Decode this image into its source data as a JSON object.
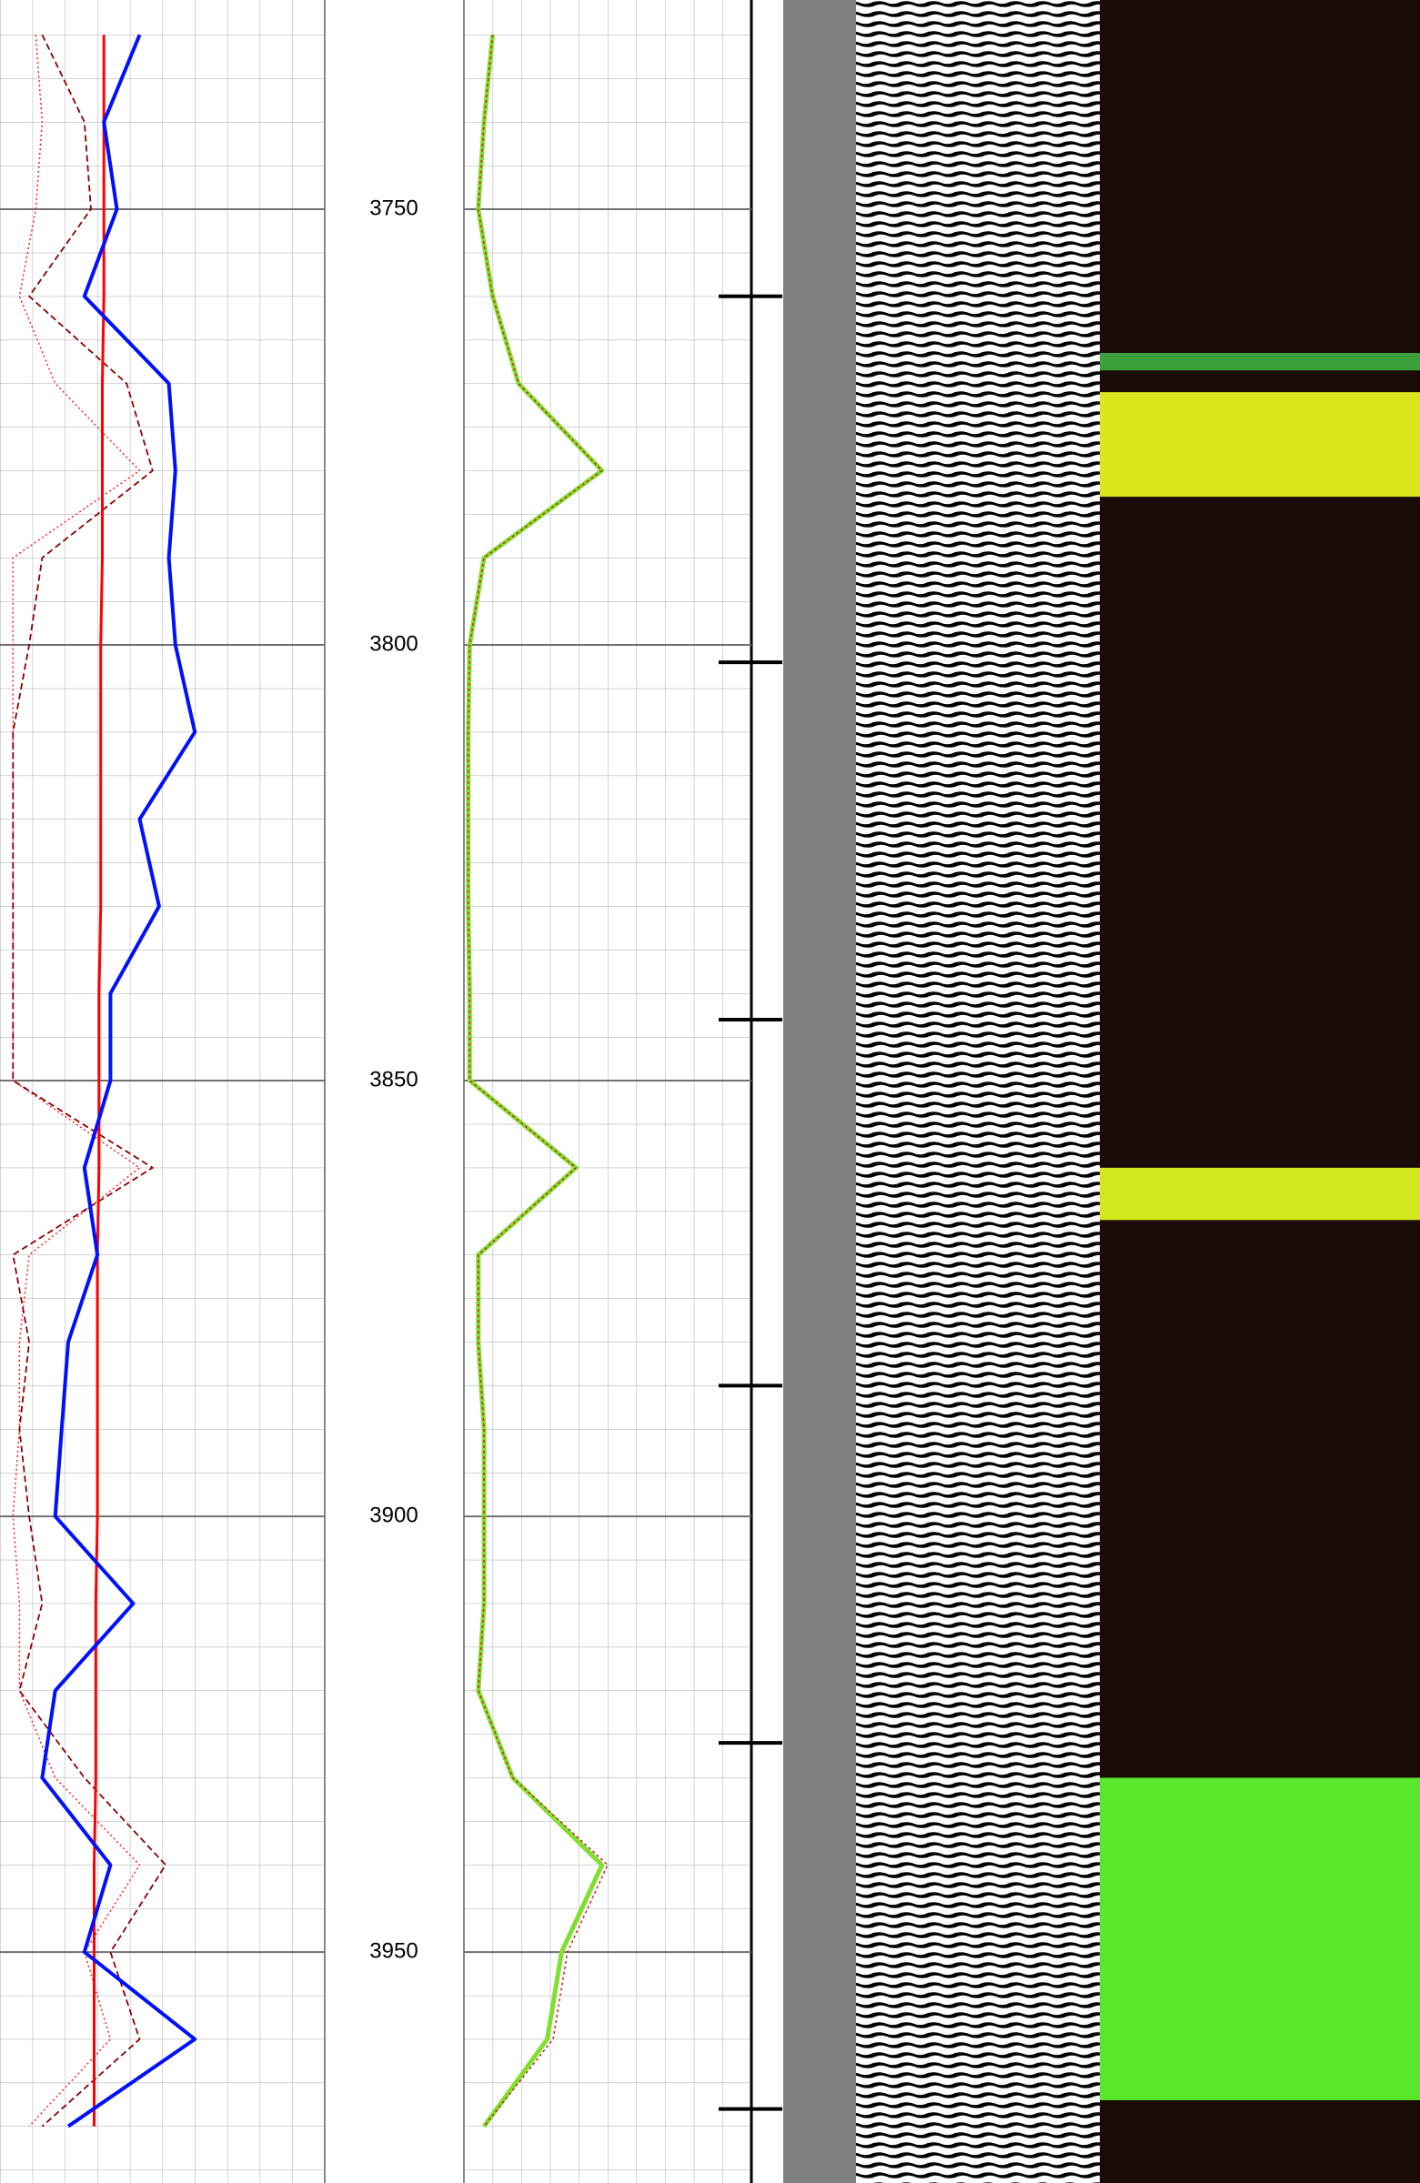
{
  "chart_data": {
    "type": "well-log",
    "ylim": [
      3726,
      3976.5
    ],
    "yticks": [
      3750,
      3800,
      3850,
      3900,
      3950
    ],
    "depth": [
      3730,
      3740,
      3750,
      3760,
      3770,
      3780,
      3790,
      3800,
      3810,
      3820,
      3830,
      3840,
      3850,
      3860,
      3870,
      3880,
      3890,
      3900,
      3910,
      3920,
      3930,
      3940,
      3950,
      3960,
      3970
    ],
    "tracks": [
      {
        "xlim": [
          0,
          100
        ],
        "series": [
          {
            "color": "#ff2020",
            "dash": "2,3",
            "width": 1.5,
            "values": [
              11,
              13,
              11,
              6,
              17,
              43,
              4,
              4,
              4,
              4,
              4,
              4,
              4,
              43,
              9,
              6,
              6,
              4,
              6,
              6,
              17,
              43,
              26,
              34,
              9
            ]
          },
          {
            "color": "#8b0000",
            "dash": "7,4",
            "width": 1.8,
            "values": [
              13,
              26,
              28,
              9,
              39,
              47,
              13,
              9,
              4,
              4,
              4,
              4,
              4,
              47,
              4,
              9,
              6,
              9,
              13,
              6,
              26,
              51,
              34,
              43,
              13
            ]
          },
          {
            "color": "#ff0000",
            "dash": "",
            "width": 3,
            "values": [
              32,
              32,
              32,
              32,
              31.5,
              31.5,
              31.5,
              31,
              31,
              31,
              31,
              30.5,
              30.5,
              30.5,
              30,
              30,
              30,
              30,
              29.5,
              29.5,
              29.5,
              29,
              29,
              29,
              29
            ]
          },
          {
            "color": "#0010ff",
            "dash": "",
            "width": 4,
            "values": [
              43,
              32,
              36,
              26,
              52,
              54,
              52,
              54,
              60,
              43,
              49,
              34,
              34,
              26,
              30,
              21,
              19,
              17,
              41,
              17,
              13,
              34,
              26,
              60,
              21
            ]
          }
        ]
      },
      {
        "xlim": [
          0,
          100
        ],
        "series": [
          {
            "color": "#80e030",
            "dash": "",
            "width": 5,
            "values": [
              10,
              7,
              5,
              10,
              19,
              48,
              7,
              2,
              1.5,
              1.5,
              1.5,
              2,
              2,
              39,
              5,
              5,
              7,
              7,
              7,
              5,
              17,
              48,
              34,
              29,
              7
            ]
          },
          {
            "color": "#d02020",
            "dash": "3,3",
            "width": 1.5,
            "values": [
              10,
              7,
              5,
              10,
              19,
              48,
              7,
              2,
              1.5,
              1.5,
              1.5,
              2,
              2,
              39,
              5,
              5,
              7,
              7,
              7,
              5,
              17,
              50,
              36,
              31,
              7
            ]
          }
        ]
      }
    ],
    "markers": [
      3760,
      3802,
      3843,
      3885,
      3926,
      3968
    ],
    "bands": [
      {
        "top": 3766.5,
        "base": 3768.5,
        "color": "#40b040"
      },
      {
        "top": 3771,
        "base": 3783,
        "color": "#f0ff20"
      },
      {
        "top": 3860,
        "base": 3866,
        "color": "#e8ff20"
      },
      {
        "top": 3930,
        "base": 3967,
        "color": "#60ff30"
      }
    ]
  }
}
